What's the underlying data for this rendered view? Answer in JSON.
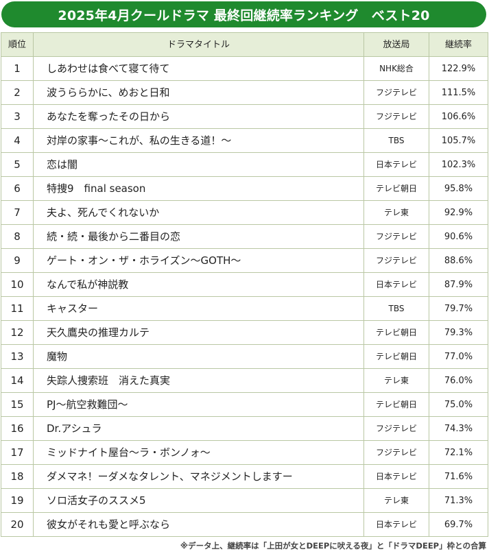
{
  "header": {
    "title": "2025年4月クールドラマ 最終回継続率ランキング　ベスト20"
  },
  "table": {
    "columns": {
      "rank": "順位",
      "title": "ドラマタイトル",
      "station": "放送局",
      "rate": "継続率"
    },
    "rows": [
      {
        "rank": "1",
        "title": "しあわせは食べて寝て待て",
        "station": "NHK総合",
        "rate": "122.9%"
      },
      {
        "rank": "2",
        "title": "波うららかに、めおと日和",
        "station": "フジテレビ",
        "rate": "111.5%"
      },
      {
        "rank": "3",
        "title": "あなたを奪ったその日から",
        "station": "フジテレビ",
        "rate": "106.6%"
      },
      {
        "rank": "4",
        "title": "対岸の家事〜これが、私の生きる道！〜",
        "station": "TBS",
        "rate": "105.7%"
      },
      {
        "rank": "5",
        "title": "恋は闇",
        "station": "日本テレビ",
        "rate": "102.3%"
      },
      {
        "rank": "6",
        "title": "特捜9　final season",
        "station": "テレビ朝日",
        "rate": "95.8%"
      },
      {
        "rank": "7",
        "title": "夫よ、死んでくれないか",
        "station": "テレ東",
        "rate": "92.9%"
      },
      {
        "rank": "8",
        "title": "続・続・最後から二番目の恋",
        "station": "フジテレビ",
        "rate": "90.6%"
      },
      {
        "rank": "9",
        "title": "ゲート・オン・ザ・ホライズン〜GOTH〜",
        "station": "フジテレビ",
        "rate": "88.6%"
      },
      {
        "rank": "10",
        "title": "なんで私が神説教",
        "station": "日本テレビ",
        "rate": "87.9%"
      },
      {
        "rank": "11",
        "title": "キャスター",
        "station": "TBS",
        "rate": "79.7%"
      },
      {
        "rank": "12",
        "title": "天久鷹央の推理カルテ",
        "station": "テレビ朝日",
        "rate": "79.3%"
      },
      {
        "rank": "13",
        "title": "魔物",
        "station": "テレビ朝日",
        "rate": "77.0%"
      },
      {
        "rank": "14",
        "title": "失踪人捜索班　消えた真実",
        "station": "テレ東",
        "rate": "76.0%"
      },
      {
        "rank": "15",
        "title": "PJ〜航空救難団〜",
        "station": "テレビ朝日",
        "rate": "75.0%"
      },
      {
        "rank": "16",
        "title": "Dr.アシュラ",
        "station": "フジテレビ",
        "rate": "74.3%"
      },
      {
        "rank": "17",
        "title": "ミッドナイト屋台〜ラ・ボンノォ〜",
        "station": "フジテレビ",
        "rate": "72.1%"
      },
      {
        "rank": "18",
        "title": "ダメマネ！ーダメなタレント、マネジメントしますー",
        "station": "日本テレビ",
        "rate": "71.6%"
      },
      {
        "rank": "19",
        "title": "ソロ活女子のススメ5",
        "station": "テレ東",
        "rate": "71.3%"
      },
      {
        "rank": "20",
        "title": "彼女がそれも愛と呼ぶなら",
        "station": "日本テレビ",
        "rate": "69.7%"
      }
    ]
  },
  "footnote": "※データ上、継続率は「上田が女とDEEPに吠える夜」と「ドラマDEEP」枠との合算",
  "colors": {
    "banner_bg": "#1f8a2e",
    "banner_text": "#ffffff",
    "header_row_bg": "#e6eed8",
    "grid_line": "#b9c7a3"
  }
}
